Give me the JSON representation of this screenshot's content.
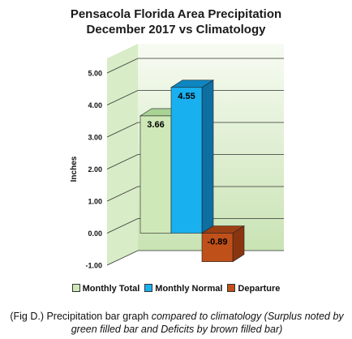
{
  "chart_data": {
    "type": "bar",
    "title_lines": [
      "Pensacola Florida Area Precipitation",
      "December 2017 vs Climatology"
    ],
    "ylabel": "Inches",
    "xlabel": "",
    "ylim": [
      -1.0,
      5.0
    ],
    "yticks": [
      "5.00",
      "4.00",
      "3.00",
      "2.00",
      "1.00",
      "0.00",
      "-1.00"
    ],
    "ytick_values": [
      5,
      4,
      3,
      2,
      1,
      0,
      -1
    ],
    "grid": true,
    "legend_position": "bottom",
    "series": [
      {
        "name": "Monthly Total",
        "value": 3.66,
        "label": "3.66",
        "color": "#cfe8b8",
        "side_color": "#8fbf78",
        "top_color": "#a9d394"
      },
      {
        "name": "Monthly Normal",
        "value": 4.55,
        "label": "4.55",
        "color": "#19b0f0",
        "side_color": "#0d6fa2",
        "top_color": "#0e86c2"
      },
      {
        "name": "Departure",
        "value": -0.89,
        "label": "-0.89",
        "color": "#c0501a",
        "side_color": "#8a3510",
        "top_color": "#9c4014"
      }
    ]
  },
  "caption": {
    "prefix": "(Fig D.) Precipitation bar graph ",
    "italic": "compared to climatology (Surplus noted by green filled bar and Deficits by brown filled bar)"
  }
}
